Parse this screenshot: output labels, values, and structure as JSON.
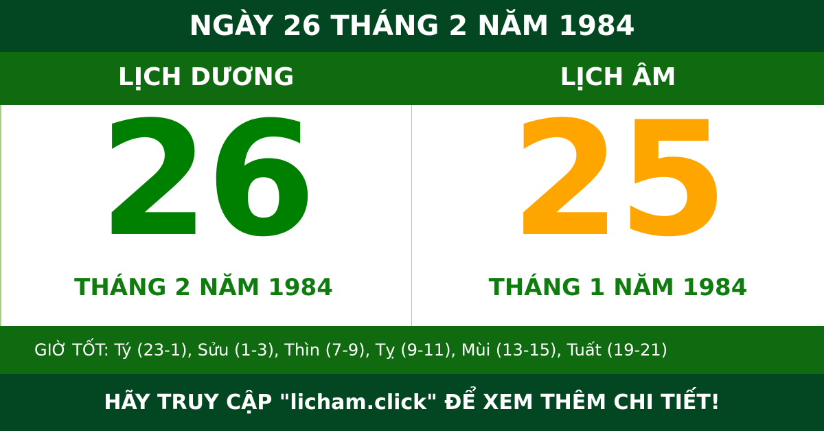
{
  "title": "NGÀY 26 THÁNG 2 NĂM 1984",
  "solar": {
    "label": "LỊCH DƯƠNG",
    "day": "26",
    "month_year": "THÁNG 2 NĂM 1984"
  },
  "lunar": {
    "label": "LỊCH ÂM",
    "day": "25",
    "month_year": "THÁNG 1 NĂM 1984"
  },
  "good_hours": "GIỜ TỐT: Tý (23-1), Sửu (1-3), Thìn (7-9), Tỵ (9-11), Mùi (13-15), Tuất (19-21)",
  "footer": "HÃY TRUY CẬP \"licham.click\" ĐỂ XEM THÊM CHI TIẾT!",
  "colors": {
    "dark_green": "#034722",
    "green": "#106b10",
    "solar_day": "#008000",
    "lunar_day": "#ffa500"
  }
}
